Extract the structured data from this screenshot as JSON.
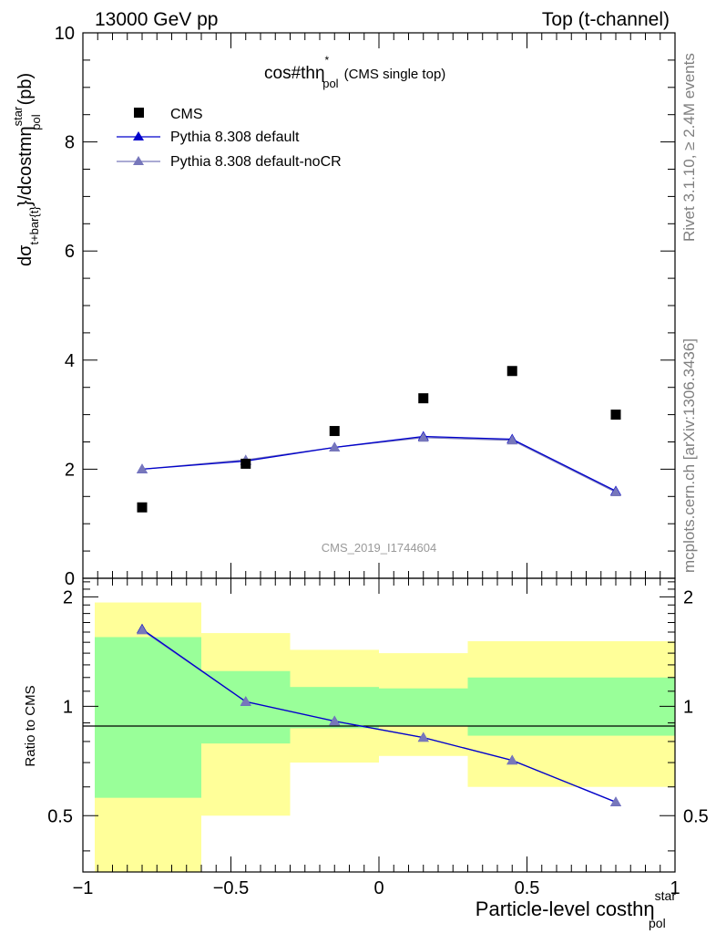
{
  "header": {
    "left": "13000 GeV pp",
    "right": "Top (t-channel)"
  },
  "side_labels": {
    "rivet": "Rivet 3.1.10, ≥ 2.4M events",
    "mcplots": "mcplots.cern.ch [arXiv:1306.3436]"
  },
  "chart_data": [
    {
      "type": "scatter",
      "title": "cos#thη",
      "title_sup": "*",
      "title_sub": "pol",
      "title_note": "(CMS single top)",
      "watermark": "CMS_2019_I1744604",
      "ylabel": "dσ",
      "ylabel_sub": "t+bar{t}",
      "ylabel_mid": "}/dcostmη",
      "ylabel_sup": "star",
      "ylabel_sub2": "pol",
      "ylabel_unit": "(pb)",
      "xlim": [
        -1,
        1
      ],
      "ylim": [
        0,
        10
      ],
      "y_ticks": [
        "0",
        "2",
        "4",
        "6",
        "8",
        "10"
      ],
      "legend_position": "top-left",
      "legend": [
        "CMS",
        "Pythia 8.308 default",
        "Pythia 8.308 default-noCR"
      ],
      "colors": {
        "data": "#000000",
        "default": "#0000cc",
        "noCR": "#7777bb"
      },
      "x": [
        -0.8,
        -0.45,
        -0.15,
        0.15,
        0.45,
        0.8
      ],
      "series": [
        {
          "name": "CMS",
          "values": [
            1.3,
            2.1,
            2.7,
            3.3,
            3.8,
            3.0
          ]
        },
        {
          "name": "Pythia 8.308 default",
          "values": [
            2.0,
            2.15,
            2.4,
            2.6,
            2.55,
            1.6
          ]
        },
        {
          "name": "Pythia 8.308 default-noCR",
          "values": [
            2.0,
            2.17,
            2.4,
            2.58,
            2.53,
            1.58
          ]
        }
      ]
    },
    {
      "type": "line",
      "ylabel": "Ratio to CMS",
      "xlabel": "Particle-level costhη",
      "xlabel_sup": "star",
      "xlabel_sub": "pol",
      "xlim": [
        -1,
        1
      ],
      "ylim": [
        0.35,
        2.25
      ],
      "x_ticks": [
        "−1",
        "−0.5",
        "0",
        "0.5",
        "1"
      ],
      "y_ticks": [
        "0.5",
        "1",
        "2"
      ],
      "bins": [
        {
          "lo": -1.0,
          "hi": -0.6,
          "inner": [
            0.56,
            1.55
          ],
          "outer": [
            0.35,
            1.93
          ]
        },
        {
          "lo": -0.6,
          "hi": -0.3,
          "inner": [
            0.79,
            1.25
          ],
          "outer": [
            0.5,
            1.59
          ]
        },
        {
          "lo": -0.3,
          "hi": 0.0,
          "inner": [
            0.87,
            1.13
          ],
          "outer": [
            0.7,
            1.43
          ]
        },
        {
          "lo": 0.0,
          "hi": 0.3,
          "inner": [
            0.88,
            1.12
          ],
          "outer": [
            0.73,
            1.4
          ]
        },
        {
          "lo": 0.3,
          "hi": 1.0,
          "inner": [
            0.83,
            1.2
          ],
          "outer": [
            0.6,
            1.51
          ]
        }
      ],
      "band_colors": {
        "inner": "#99ff99",
        "outer": "#ffff99"
      },
      "x": [
        -0.8,
        -0.45,
        -0.15,
        0.15,
        0.45,
        0.8
      ],
      "series": [
        {
          "name": "Pythia 8.308 default",
          "values": [
            1.63,
            1.03,
            0.91,
            0.82,
            0.71,
            0.545
          ]
        },
        {
          "name": "Pythia 8.308 default-noCR",
          "values": [
            1.62,
            1.03,
            0.91,
            0.82,
            0.71,
            0.545
          ]
        }
      ]
    }
  ]
}
